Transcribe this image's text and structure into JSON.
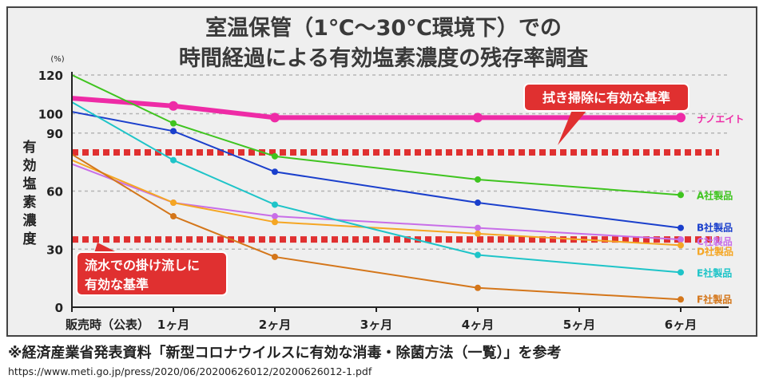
{
  "chart_data": {
    "type": "line",
    "title_lines": [
      "室温保管（1℃～30℃環境下）での",
      "時間経過による有効塩素濃度の残存率調査"
    ],
    "ylabel": "有効塩素濃度",
    "yunit": "(%)",
    "ylim": [
      0,
      120
    ],
    "yticks": [
      0,
      30,
      60,
      90,
      100,
      120
    ],
    "categories": [
      "販売時（公表）",
      "1ヶ月",
      "2ヶ月",
      "3ヶ月",
      "4ヶ月",
      "5ヶ月",
      "6ヶ月"
    ],
    "series": [
      {
        "name": "ナノエイト",
        "color": "#ee2ba6",
        "x": [
          0,
          1,
          2,
          4,
          6
        ],
        "values": [
          108,
          104,
          98,
          98,
          98
        ]
      },
      {
        "name": "A社製品",
        "color": "#3fc41f",
        "x": [
          0,
          1,
          2,
          4,
          6
        ],
        "values": [
          120,
          95,
          78,
          66,
          58
        ]
      },
      {
        "name": "B社製品",
        "color": "#1a3fcc",
        "x": [
          0,
          1,
          2,
          4,
          6
        ],
        "values": [
          101,
          91,
          70,
          54,
          41
        ]
      },
      {
        "name": "C社製品",
        "color": "#c86ee8",
        "x": [
          0,
          1,
          2,
          4,
          6
        ],
        "values": [
          74,
          54,
          47,
          41,
          35
        ]
      },
      {
        "name": "D社製品",
        "color": "#f5a623",
        "x": [
          0,
          1,
          2,
          4,
          6
        ],
        "values": [
          76,
          54,
          44,
          38,
          32
        ]
      },
      {
        "name": "E社製品",
        "color": "#1ec4c8",
        "x": [
          0,
          1,
          2,
          4,
          6
        ],
        "values": [
          106,
          76,
          53,
          27,
          18
        ]
      },
      {
        "name": "F社製品",
        "color": "#d4761a",
        "x": [
          0,
          1,
          2,
          4,
          6
        ],
        "values": [
          79,
          47,
          26,
          10,
          4
        ]
      }
    ],
    "thresholds": [
      {
        "value": 80,
        "color": "#e03030",
        "label": "拭き掃除に有効な基準"
      },
      {
        "value": 35,
        "color": "#e03030",
        "label": "流水での掛け流しに有効な基準"
      }
    ]
  },
  "footnote": "※経済産業省発表資料「新型コロナウイルスに有効な消毒・除菌方法（一覧）」を参考",
  "source_url": "https://www.meti.go.jp/press/2020/06/20200626012/20200626012-1.pdf"
}
